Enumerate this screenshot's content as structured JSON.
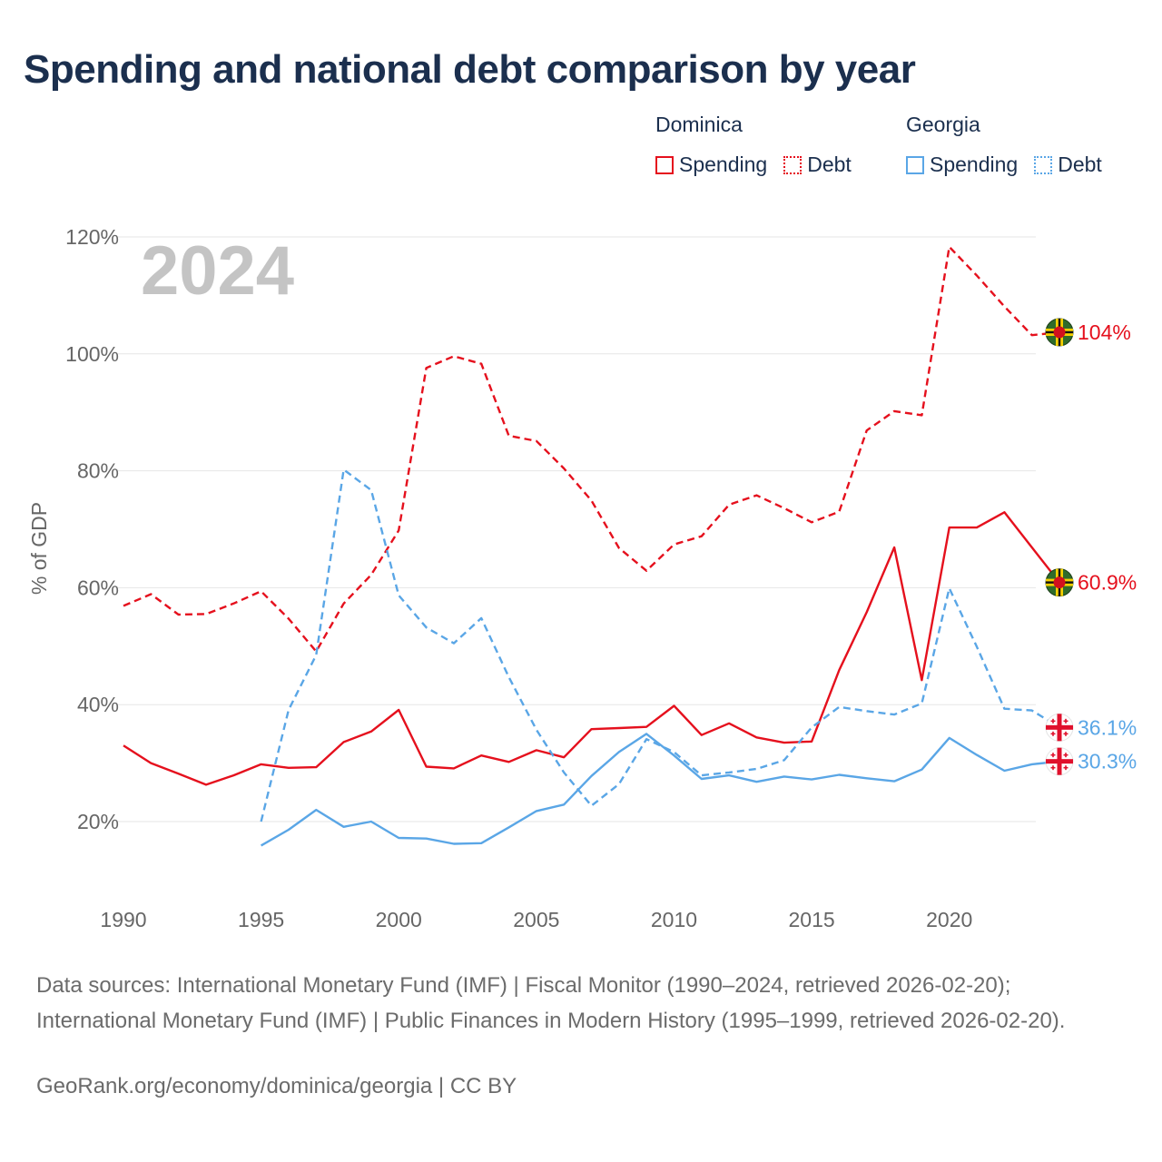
{
  "title": "Spending and national debt comparison by year",
  "legend": {
    "groups": [
      {
        "name": "Dominica",
        "items": [
          {
            "label": "Spending",
            "style": "solid"
          },
          {
            "label": "Debt",
            "style": "dotted"
          }
        ],
        "color": "#e5101d"
      },
      {
        "name": "Georgia",
        "items": [
          {
            "label": "Spending",
            "style": "solid"
          },
          {
            "label": "Debt",
            "style": "dotted"
          }
        ],
        "color": "#5aa6e6"
      }
    ]
  },
  "year_watermark": "2024",
  "chart_data": {
    "type": "line",
    "title": "Spending and national debt comparison by year",
    "xlabel": "",
    "ylabel": "% of GDP",
    "xlim": [
      1990,
      2024
    ],
    "ylim": [
      8,
      125
    ],
    "x_ticks": [
      1990,
      1995,
      2000,
      2005,
      2010,
      2015,
      2020
    ],
    "y_ticks": [
      20,
      40,
      60,
      80,
      100,
      120
    ],
    "y_tick_labels": [
      "20%",
      "40%",
      "60%",
      "80%",
      "100%",
      "120%"
    ],
    "grid": true,
    "series": [
      {
        "name": "Dominica Spending",
        "country": "Dominica",
        "metric": "Spending",
        "color": "#e5101d",
        "dash": "solid",
        "end_label": "60.9%",
        "x": [
          1990,
          1991,
          1992,
          1993,
          1994,
          1995,
          1996,
          1997,
          1998,
          1999,
          2000,
          2001,
          2002,
          2003,
          2004,
          2005,
          2006,
          2007,
          2008,
          2009,
          2010,
          2011,
          2012,
          2013,
          2014,
          2015,
          2016,
          2017,
          2018,
          2019,
          2020,
          2021,
          2022,
          2023,
          2024
        ],
        "values": [
          33.0,
          30.0,
          28.2,
          26.3,
          27.9,
          29.8,
          29.2,
          29.3,
          33.6,
          35.4,
          39.1,
          29.4,
          29.1,
          31.3,
          30.2,
          32.2,
          31.0,
          35.8,
          36.0,
          36.2,
          39.8,
          34.8,
          36.8,
          34.4,
          33.5,
          33.7,
          45.9,
          55.8,
          66.9,
          44.2,
          70.3,
          70.3,
          72.9,
          66.9,
          60.9
        ]
      },
      {
        "name": "Dominica Debt",
        "country": "Dominica",
        "metric": "Debt",
        "color": "#e5101d",
        "dash": "dashed",
        "end_label": "104%",
        "x": [
          1990,
          1991,
          1992,
          1993,
          1994,
          1995,
          1996,
          1997,
          1998,
          1999,
          2000,
          2001,
          2002,
          2003,
          2004,
          2005,
          2006,
          2007,
          2008,
          2009,
          2010,
          2011,
          2012,
          2013,
          2014,
          2015,
          2016,
          2017,
          2018,
          2019,
          2020,
          2021,
          2022,
          2023,
          2024
        ],
        "values": [
          56.9,
          58.9,
          55.4,
          55.5,
          57.3,
          59.4,
          54.7,
          49.1,
          57.3,
          62.2,
          69.8,
          97.6,
          99.6,
          98.3,
          86.0,
          85.1,
          80.4,
          74.9,
          66.8,
          62.9,
          67.4,
          68.8,
          74.2,
          75.8,
          73.6,
          71.2,
          73.0,
          86.9,
          90.2,
          89.5,
          118.3,
          113.4,
          108.1,
          103.2,
          103.7
        ]
      },
      {
        "name": "Georgia Spending",
        "country": "Georgia",
        "metric": "Spending",
        "color": "#5aa6e6",
        "dash": "solid",
        "end_label": "30.3%",
        "x": [
          1995,
          1996,
          1997,
          1998,
          1999,
          2000,
          2001,
          2002,
          2003,
          2004,
          2005,
          2006,
          2007,
          2008,
          2009,
          2010,
          2011,
          2012,
          2013,
          2014,
          2015,
          2016,
          2017,
          2018,
          2019,
          2020,
          2021,
          2022,
          2023,
          2024
        ],
        "values": [
          15.9,
          18.6,
          22.0,
          19.1,
          20.0,
          17.2,
          17.1,
          16.2,
          16.3,
          19.0,
          21.8,
          22.9,
          27.8,
          31.9,
          35.0,
          31.3,
          27.3,
          27.9,
          26.8,
          27.7,
          27.2,
          28.0,
          27.4,
          26.9,
          28.9,
          34.3,
          31.4,
          28.7,
          29.8,
          30.3
        ]
      },
      {
        "name": "Georgia Debt",
        "country": "Georgia",
        "metric": "Debt",
        "color": "#5aa6e6",
        "dash": "dashed",
        "end_label": "36.1%",
        "x": [
          1995,
          1996,
          1997,
          1998,
          1999,
          2000,
          2001,
          2002,
          2003,
          2004,
          2005,
          2006,
          2007,
          2008,
          2009,
          2010,
          2011,
          2012,
          2013,
          2014,
          2015,
          2016,
          2017,
          2018,
          2019,
          2020,
          2021,
          2022,
          2023,
          2024
        ],
        "values": [
          20.0,
          39.1,
          48.5,
          80.2,
          76.7,
          58.7,
          53.2,
          50.5,
          54.8,
          44.7,
          35.7,
          28.4,
          22.7,
          26.4,
          34.1,
          31.9,
          27.9,
          28.4,
          29.0,
          30.5,
          36.1,
          39.6,
          38.9,
          38.3,
          40.2,
          59.9,
          49.9,
          39.3,
          39.0,
          36.1
        ]
      }
    ]
  },
  "sources": {
    "text": "Data sources: International Monetary Fund (IMF) | Fiscal Monitor (1990–2024, retrieved 2026-02-20); International Monetary Fund (IMF) | Public Finances in Modern History (1995–1999, retrieved 2026-02-20).",
    "credit": "GeoRank.org/economy/dominica/georgia | CC BY"
  },
  "flags": {
    "Dominica": "dominica-flag-icon",
    "Georgia": "georgia-flag-icon"
  }
}
